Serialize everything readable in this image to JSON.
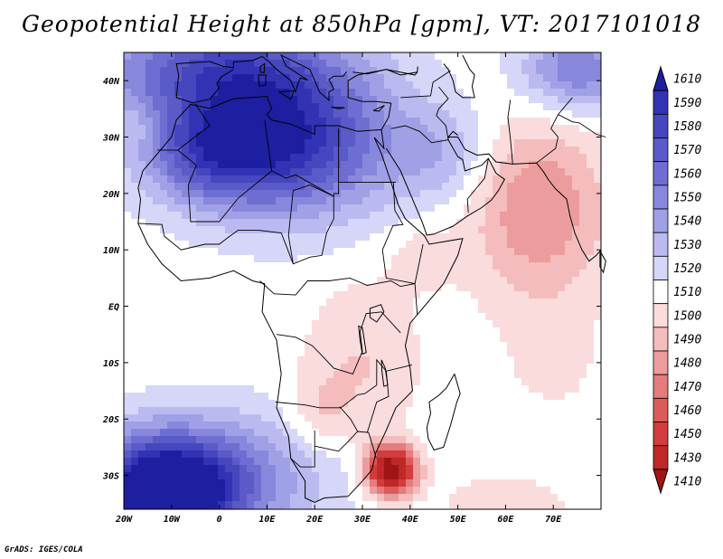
{
  "title": "Geopotential Height at 850hPa [gpm], VT: 2017101018",
  "footer": "GrADS: IGES/COLA",
  "map": {
    "lon_range": [
      -20,
      80
    ],
    "lat_range": [
      -36,
      45
    ],
    "lon_ticks": [
      {
        "value": -20,
        "label": "20W"
      },
      {
        "value": -10,
        "label": "10W"
      },
      {
        "value": 0,
        "label": "0"
      },
      {
        "value": 10,
        "label": "10E"
      },
      {
        "value": 20,
        "label": "20E"
      },
      {
        "value": 30,
        "label": "30E"
      },
      {
        "value": 40,
        "label": "40E"
      },
      {
        "value": 50,
        "label": "50E"
      },
      {
        "value": 60,
        "label": "60E"
      },
      {
        "value": 70,
        "label": "70E"
      }
    ],
    "lat_ticks": [
      {
        "value": 40,
        "label": "40N"
      },
      {
        "value": 30,
        "label": "30N"
      },
      {
        "value": 20,
        "label": "20N"
      },
      {
        "value": 10,
        "label": "10N"
      },
      {
        "value": 0,
        "label": "EQ"
      },
      {
        "value": -10,
        "label": "10S"
      },
      {
        "value": -20,
        "label": "20S"
      },
      {
        "value": -30,
        "label": "30S"
      }
    ]
  },
  "colorbar": {
    "labels": [
      "1610",
      "1590",
      "1580",
      "1570",
      "1560",
      "1550",
      "1540",
      "1530",
      "1520",
      "1510",
      "1500",
      "1490",
      "1480",
      "1470",
      "1460",
      "1450",
      "1430",
      "1410"
    ],
    "colors": [
      "#1e1ea0",
      "#3232b4",
      "#4646be",
      "#5a5ac8",
      "#6e6ed2",
      "#8787dc",
      "#a0a0e6",
      "#babaf0",
      "#d6d6f8",
      "#ffffff",
      "#fadcdc",
      "#f4bcbc",
      "#ec9c9c",
      "#e47c7c",
      "#dc5a5a",
      "#d23c3c",
      "#be2828",
      "#a01414"
    ]
  },
  "fields": [
    {
      "lon": -12,
      "lat": -33,
      "amp": 115,
      "sx": 11,
      "sy": 7
    },
    {
      "lon": 5,
      "lat": -30,
      "amp": 30,
      "sx": 14,
      "sy": 8
    },
    {
      "lon": 15,
      "lat": 29,
      "amp": 75,
      "sx": 15,
      "sy": 9
    },
    {
      "lon": -2,
      "lat": 27,
      "amp": 45,
      "sx": 10,
      "sy": 6
    },
    {
      "lon": 0,
      "lat": 42,
      "amp": 60,
      "sx": 18,
      "sy": 7
    },
    {
      "lon": 75,
      "lat": 42,
      "amp": 45,
      "sx": 8,
      "sy": 5
    },
    {
      "lon": -17,
      "lat": 32,
      "amp": -10,
      "sx": 3,
      "sy": 3
    },
    {
      "lon": 36,
      "lat": -29,
      "amp": -110,
      "sx": 3.5,
      "sy": 3
    },
    {
      "lon": 67,
      "lat": 17,
      "amp": -35,
      "sx": 10,
      "sy": 11
    },
    {
      "lon": 30,
      "lat": -10,
      "amp": -15,
      "sx": 8,
      "sy": 10
    },
    {
      "lon": 21,
      "lat": -19,
      "amp": -15,
      "sx": 5,
      "sy": 5
    },
    {
      "lon": 47,
      "lat": 27,
      "amp": 20,
      "sx": 7,
      "sy": 6
    },
    {
      "lon": 60,
      "lat": -35,
      "amp": -15,
      "sx": 8,
      "sy": 3
    },
    {
      "lon": 42,
      "lat": 9,
      "amp": -10,
      "sx": 5,
      "sy": 4
    },
    {
      "lon": 70,
      "lat": -9,
      "amp": -10,
      "sx": 6,
      "sy": 6
    }
  ]
}
